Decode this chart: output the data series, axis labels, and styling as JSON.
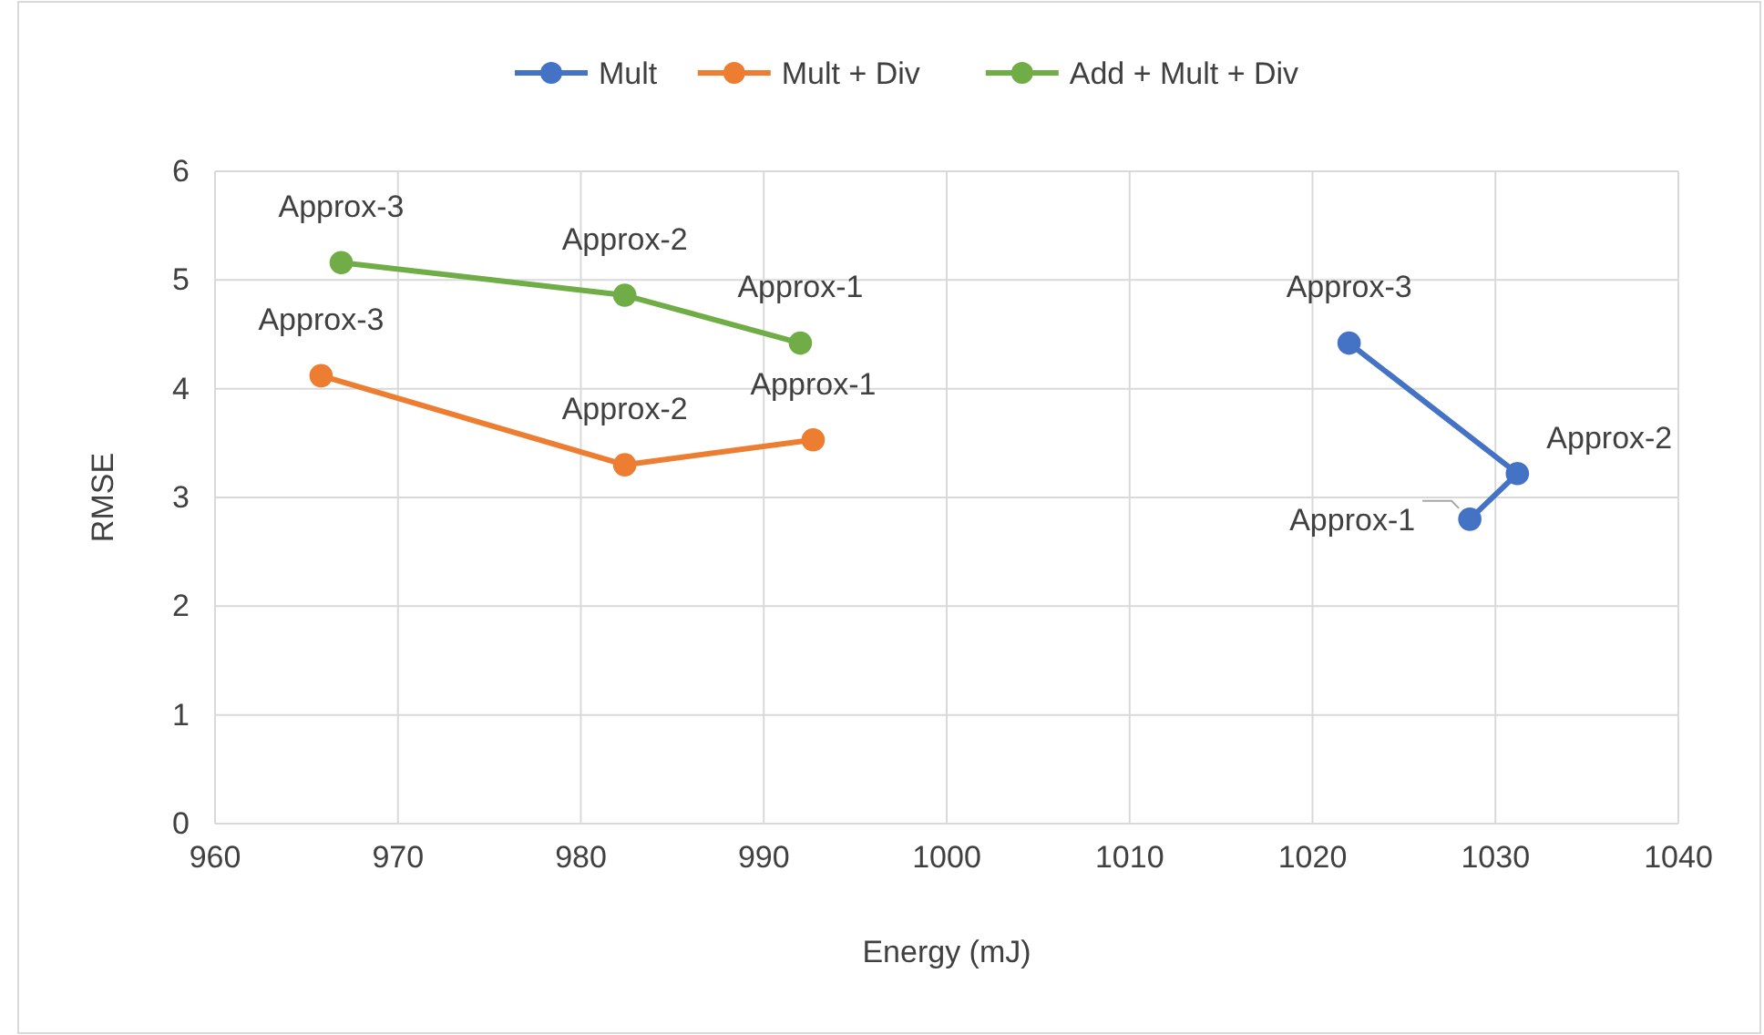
{
  "chart_data": {
    "type": "line",
    "xlabel": "Energy (mJ)",
    "ylabel": "RMSE",
    "xlim": [
      960,
      1040
    ],
    "xticks": [
      960,
      970,
      980,
      990,
      1000,
      1010,
      1020,
      1030,
      1040
    ],
    "ylim": [
      0,
      6
    ],
    "yticks": [
      0,
      1,
      2,
      3,
      4,
      5,
      6
    ],
    "grid": true,
    "legend": "top",
    "marker": "circle",
    "line_style": "solid",
    "series": [
      {
        "name": "Mult",
        "color": "#4472c4",
        "x": [
          1028.6,
          1031.2,
          1022.0
        ],
        "values": [
          2.8,
          3.22,
          4.42
        ]
      },
      {
        "name": "Mult + Div",
        "color": "#ed7d31",
        "x": [
          992.7,
          982.4,
          965.8
        ],
        "values": [
          3.53,
          3.3,
          4.12
        ]
      },
      {
        "name": "Add + Mult + Div",
        "color": "#70ad47",
        "x": [
          992.0,
          982.4,
          966.9
        ],
        "values": [
          4.42,
          4.86,
          5.16
        ]
      }
    ],
    "annotations": [
      {
        "text": "Approx-1",
        "x": 1028.6,
        "y": 2.8
      },
      {
        "text": "Approx-2",
        "x": 1031.2,
        "y": 3.22
      },
      {
        "text": "Approx-3",
        "x": 1022.0,
        "y": 4.42
      },
      {
        "text": "Approx-1",
        "x": 992.7,
        "y": 3.53
      },
      {
        "text": "Approx-2",
        "x": 982.4,
        "y": 3.3
      },
      {
        "text": "Approx-3",
        "x": 965.8,
        "y": 4.12
      },
      {
        "text": "Approx-1",
        "x": 992.0,
        "y": 4.42
      },
      {
        "text": "Approx-2",
        "x": 982.4,
        "y": 4.86
      },
      {
        "text": "Approx-3",
        "x": 966.9,
        "y": 5.16
      }
    ]
  }
}
